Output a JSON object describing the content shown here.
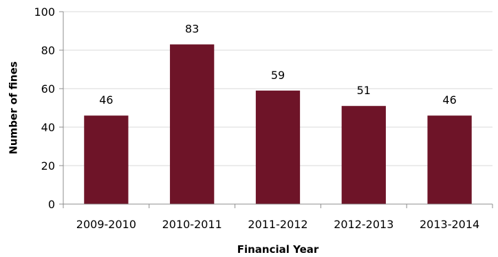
{
  "chart_data": {
    "type": "bar",
    "categories": [
      "2009-2010",
      "2010-2011",
      "2011-2012",
      "2012-2013",
      "2013-2014"
    ],
    "values": [
      46,
      83,
      59,
      51,
      46
    ],
    "data_labels": [
      "46",
      "83",
      "59",
      "51",
      "46"
    ],
    "title": "",
    "xlabel": "Financial Year",
    "ylabel": "Number of fines",
    "ylim": [
      0,
      100
    ],
    "yticks": [
      "0",
      "20",
      "40",
      "60",
      "80",
      "100"
    ],
    "grid": true,
    "legend": "none",
    "bar_color": "#6e1428"
  }
}
